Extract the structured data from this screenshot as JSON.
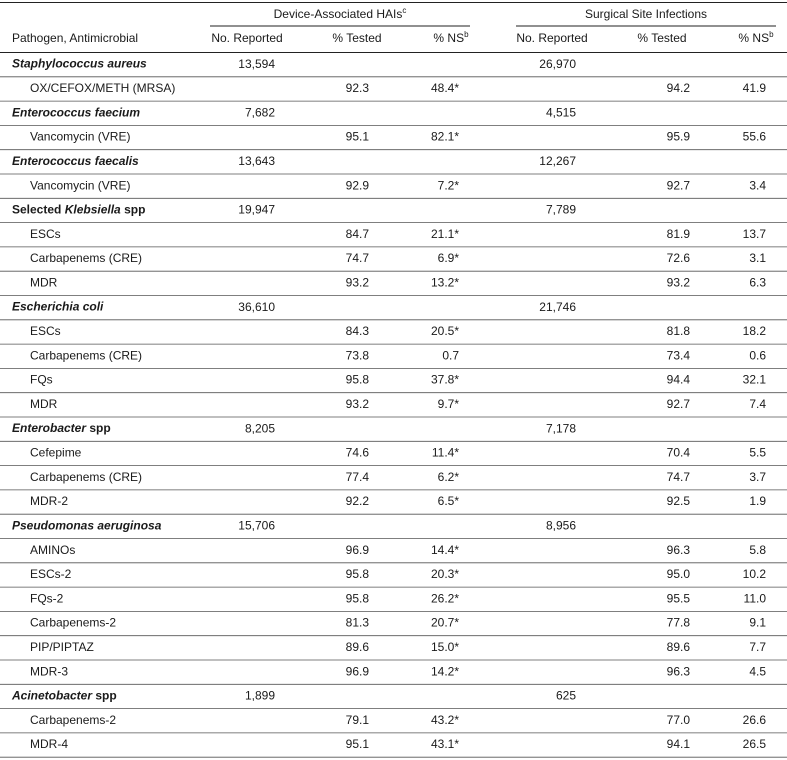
{
  "table": {
    "group_headers": [
      {
        "text": "Device-Associated HAIs",
        "sup": "c"
      },
      {
        "text": "Surgical Site Infections"
      }
    ],
    "column_headers": [
      {
        "text": "Pathogen, Antimicrobial"
      },
      {
        "text": "No. Reported"
      },
      {
        "text": "% Tested"
      },
      {
        "text": "% NS",
        "sup": "b"
      },
      {
        "text": "No. Reported"
      },
      {
        "text": "% Tested"
      },
      {
        "text": "% NS",
        "sup": "b"
      }
    ],
    "rows": [
      {
        "pathogen": [
          {
            "text": "Staphylococcus aureus",
            "italic": true
          }
        ],
        "device_reported": "13,594",
        "ssi_reported": "26,970"
      },
      {
        "antimicrobial": "OX/CEFOX/METH (MRSA)",
        "device": [
          "92.3",
          "48.4*"
        ],
        "ssi": [
          "94.2",
          "41.9"
        ]
      },
      {
        "pathogen": [
          {
            "text": "Enterococcus faecium",
            "italic": true
          }
        ],
        "device_reported": "7,682",
        "ssi_reported": "4,515"
      },
      {
        "antimicrobial": "Vancomycin (VRE)",
        "device": [
          "95.1",
          "82.1*"
        ],
        "ssi": [
          "95.9",
          "55.6"
        ]
      },
      {
        "pathogen": [
          {
            "text": "Enterococcus faecalis",
            "italic": true
          }
        ],
        "device_reported": "13,643",
        "ssi_reported": "12,267"
      },
      {
        "antimicrobial": "Vancomycin (VRE)",
        "device": [
          "92.9",
          "7.2*"
        ],
        "ssi": [
          "92.7",
          "3.4"
        ]
      },
      {
        "pathogen": [
          {
            "text": "Selected ",
            "italic": false
          },
          {
            "text": "Klebsiella",
            "italic": true
          },
          {
            "text": " spp",
            "italic": false
          }
        ],
        "device_reported": "19,947",
        "ssi_reported": "7,789"
      },
      {
        "antimicrobial": "ESCs",
        "device": [
          "84.7",
          "21.1*"
        ],
        "ssi": [
          "81.9",
          "13.7"
        ]
      },
      {
        "antimicrobial": "Carbapenems (CRE)",
        "device": [
          "74.7",
          "6.9*"
        ],
        "ssi": [
          "72.6",
          "3.1"
        ]
      },
      {
        "antimicrobial": "MDR",
        "device": [
          "93.2",
          "13.2*"
        ],
        "ssi": [
          "93.2",
          "6.3"
        ]
      },
      {
        "pathogen": [
          {
            "text": "Escherichia coli",
            "italic": true
          }
        ],
        "device_reported": "36,610",
        "ssi_reported": "21,746"
      },
      {
        "antimicrobial": "ESCs",
        "device": [
          "84.3",
          "20.5*"
        ],
        "ssi": [
          "81.8",
          "18.2"
        ]
      },
      {
        "antimicrobial": "Carbapenems (CRE)",
        "device": [
          "73.8",
          "0.7"
        ],
        "ssi": [
          "73.4",
          "0.6"
        ]
      },
      {
        "antimicrobial": "FQs",
        "device": [
          "95.8",
          "37.8*"
        ],
        "ssi": [
          "94.4",
          "32.1"
        ]
      },
      {
        "antimicrobial": "MDR",
        "device": [
          "93.2",
          "9.7*"
        ],
        "ssi": [
          "92.7",
          "7.4"
        ]
      },
      {
        "pathogen": [
          {
            "text": "Enterobacter",
            "italic": true
          },
          {
            "text": " spp",
            "italic": false
          }
        ],
        "device_reported": "8,205",
        "ssi_reported": "7,178"
      },
      {
        "antimicrobial": "Cefepime",
        "device": [
          "74.6",
          "11.4*"
        ],
        "ssi": [
          "70.4",
          "5.5"
        ]
      },
      {
        "antimicrobial": "Carbapenems (CRE)",
        "device": [
          "77.4",
          "6.2*"
        ],
        "ssi": [
          "74.7",
          "3.7"
        ]
      },
      {
        "antimicrobial": "MDR-2",
        "device": [
          "92.2",
          "6.5*"
        ],
        "ssi": [
          "92.5",
          "1.9"
        ]
      },
      {
        "pathogen": [
          {
            "text": "Pseudomonas aeruginosa",
            "italic": true
          }
        ],
        "device_reported": "15,706",
        "ssi_reported": "8,956"
      },
      {
        "antimicrobial": "AMINOs",
        "device": [
          "96.9",
          "14.4*"
        ],
        "ssi": [
          "96.3",
          "5.8"
        ]
      },
      {
        "antimicrobial": "ESCs-2",
        "device": [
          "95.8",
          "20.3*"
        ],
        "ssi": [
          "95.0",
          "10.2"
        ]
      },
      {
        "antimicrobial": "FQs-2",
        "device": [
          "95.8",
          "26.2*"
        ],
        "ssi": [
          "95.5",
          "11.0"
        ]
      },
      {
        "antimicrobial": "Carbapenems-2",
        "device": [
          "81.3",
          "20.7*"
        ],
        "ssi": [
          "77.8",
          "9.1"
        ]
      },
      {
        "antimicrobial": "PIP/PIPTAZ",
        "device": [
          "89.6",
          "15.0*"
        ],
        "ssi": [
          "89.6",
          "7.7"
        ]
      },
      {
        "antimicrobial": "MDR-3",
        "device": [
          "96.9",
          "14.2*"
        ],
        "ssi": [
          "96.3",
          "4.5"
        ]
      },
      {
        "pathogen": [
          {
            "text": "Acinetobacter",
            "italic": true
          },
          {
            "text": " spp",
            "italic": false
          }
        ],
        "device_reported": "1,899",
        "ssi_reported": "625"
      },
      {
        "antimicrobial": "Carbapenems-2",
        "device": [
          "79.1",
          "43.2*"
        ],
        "ssi": [
          "77.0",
          "26.6"
        ]
      },
      {
        "antimicrobial": "MDR-4",
        "device": [
          "95.1",
          "43.1*"
        ],
        "ssi": [
          "94.1",
          "26.5"
        ]
      }
    ]
  }
}
